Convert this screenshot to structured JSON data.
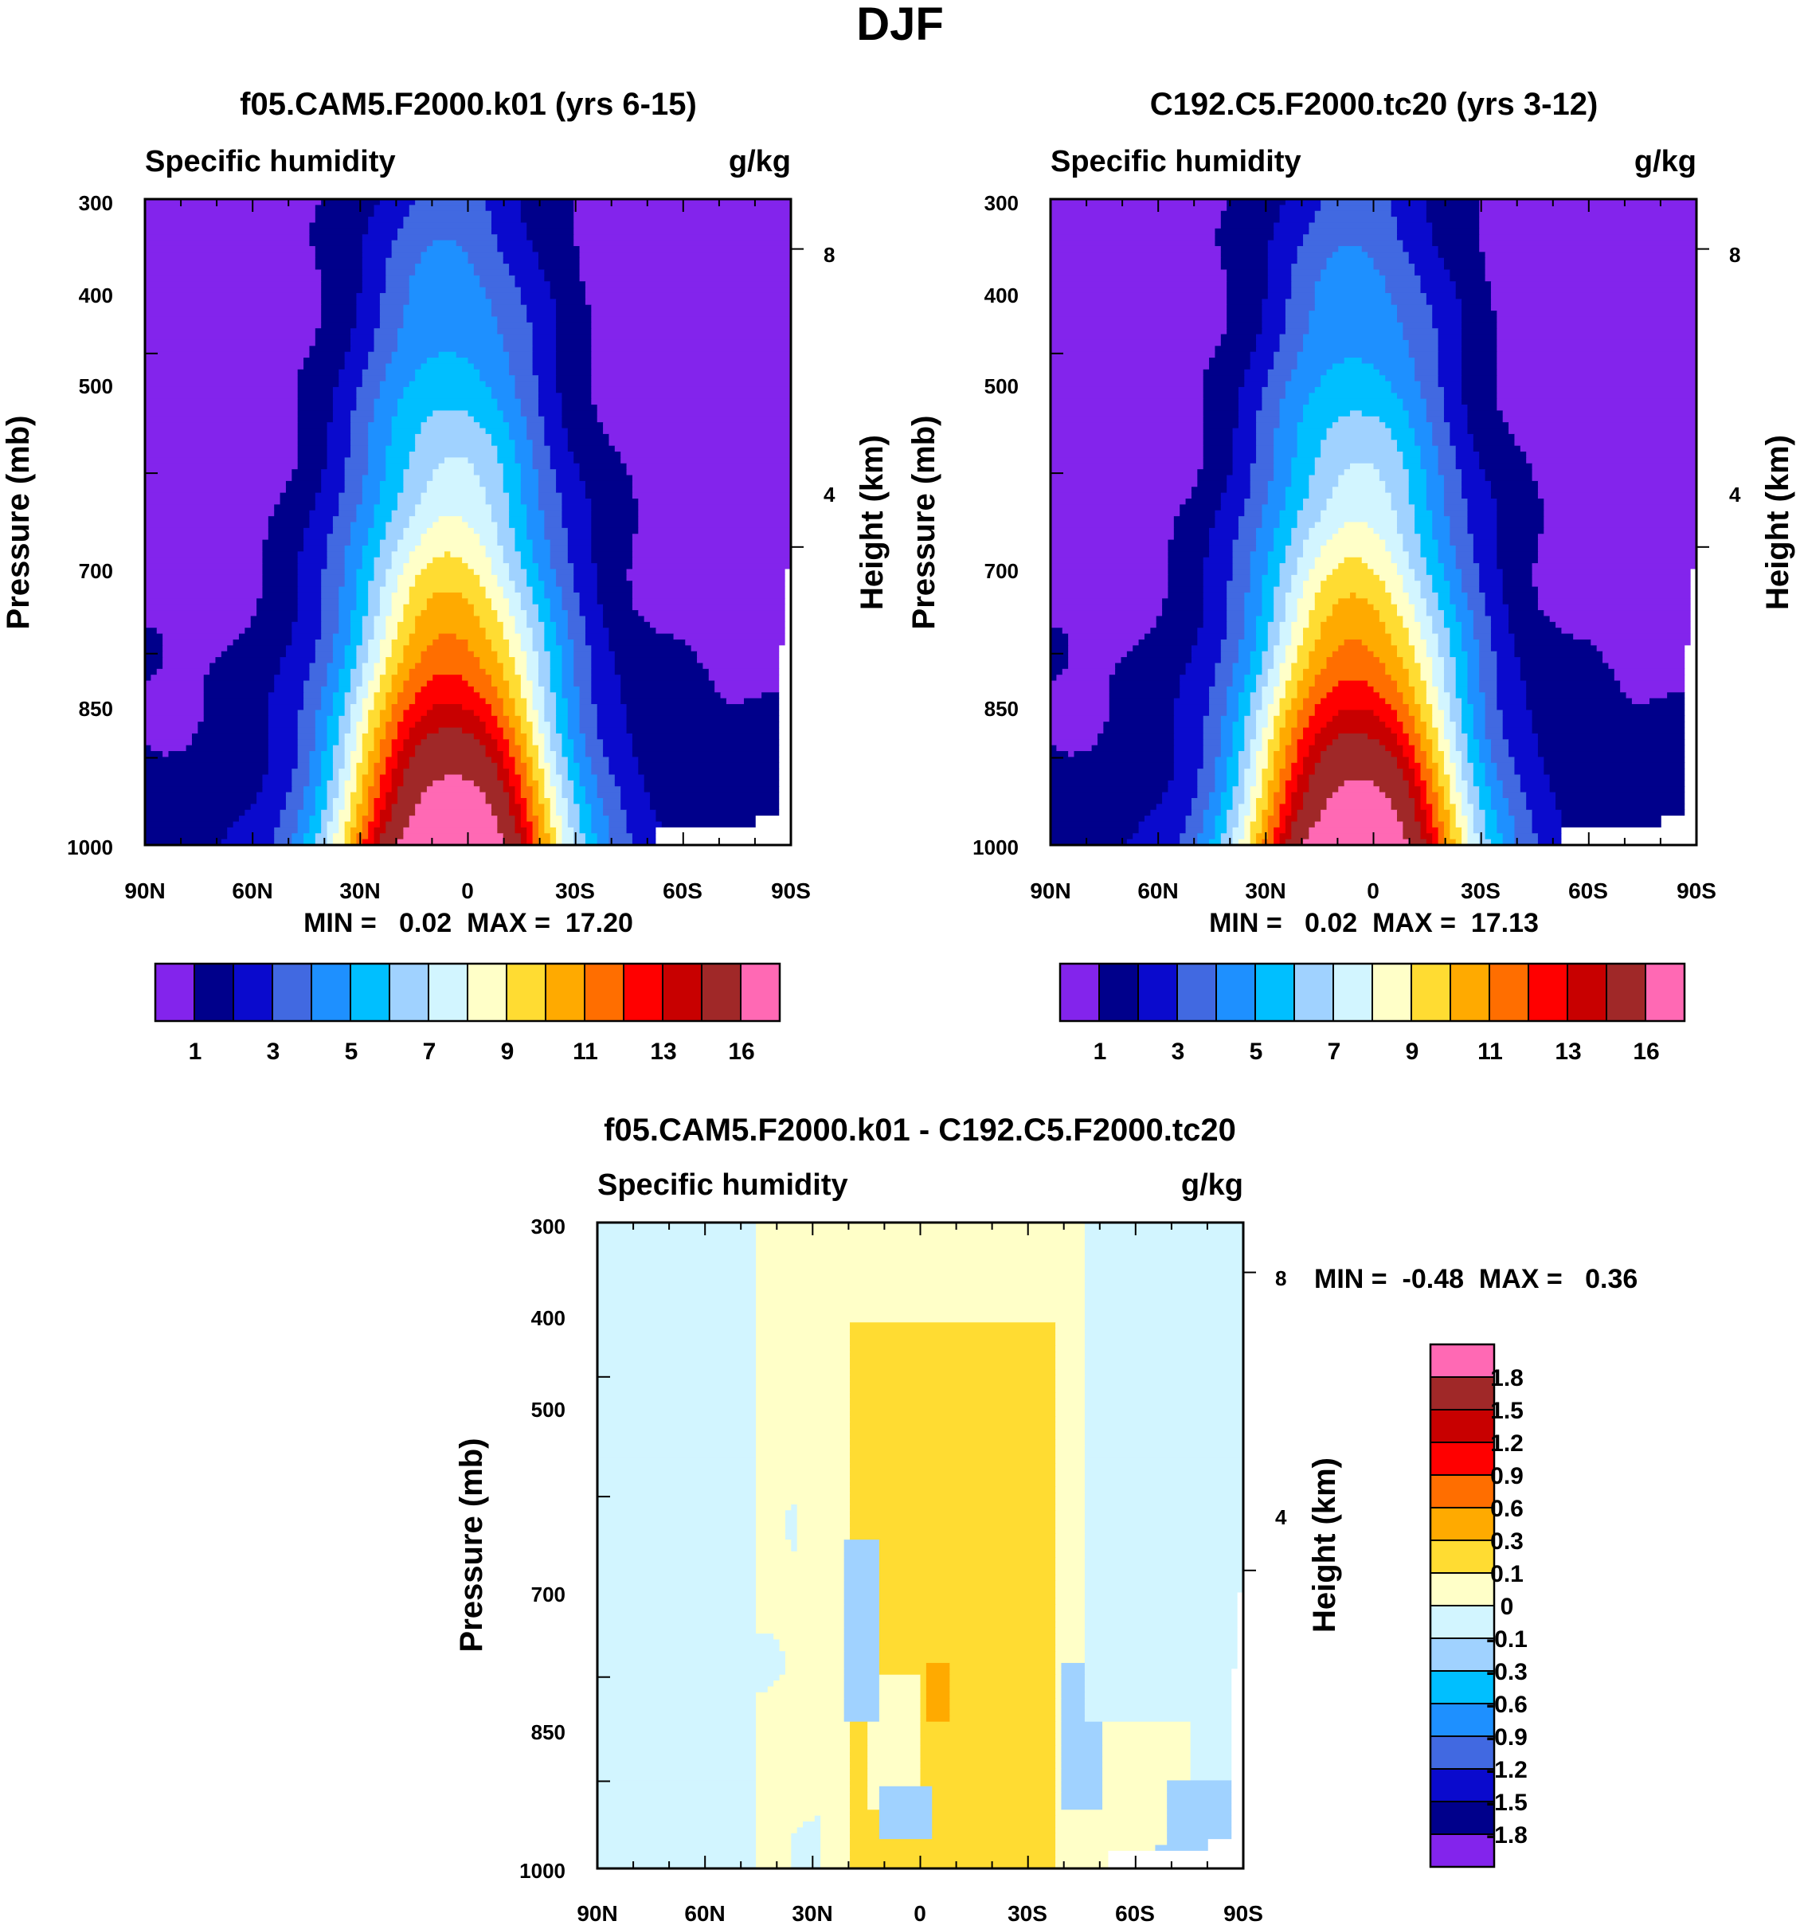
{
  "figure": {
    "title": "DJF"
  },
  "chart_data": [
    {
      "id": "model",
      "type": "heatmap",
      "title": "f05.CAM5.F2000.k01 (yrs 6-15)",
      "left_label": "Specific humidity",
      "right_label": "g/kg",
      "ylabel": "Pressure (mb)",
      "y2label": "Height (km)",
      "x_ticks": [
        "90N",
        "60N",
        "30N",
        "0",
        "30S",
        "60S",
        "90S"
      ],
      "y_ticks": [
        "300",
        "400",
        "500",
        "700",
        "850",
        "1000"
      ],
      "y2_ticks": [
        "8",
        "4"
      ],
      "ylim": [
        300,
        1000
      ],
      "stats": "MIN =   0.02  MAX =  17.20",
      "peak_lat": 5,
      "scale": 1.0,
      "colorbar_labels": [
        "1",
        "3",
        "5",
        "7",
        "9",
        "11",
        "13",
        "16"
      ]
    },
    {
      "id": "obs",
      "type": "heatmap",
      "title": "C192.C5.F2000.tc20 (yrs 3-12)",
      "left_label": "Specific humidity",
      "right_label": "g/kg",
      "ylabel": "Pressure (mb)",
      "y2label": "Height (km)",
      "x_ticks": [
        "90N",
        "60N",
        "30N",
        "0",
        "30S",
        "60S",
        "90S"
      ],
      "y_ticks": [
        "300",
        "400",
        "500",
        "700",
        "850",
        "1000"
      ],
      "y2_ticks": [
        "8",
        "4"
      ],
      "ylim": [
        300,
        1000
      ],
      "stats": "MIN =   0.02  MAX =  17.13",
      "peak_lat": 5,
      "scale": 0.985,
      "colorbar_labels": [
        "1",
        "3",
        "5",
        "7",
        "9",
        "11",
        "13",
        "16"
      ]
    },
    {
      "id": "diff",
      "type": "heatmap",
      "title": "f05.CAM5.F2000.k01 - C192.C5.F2000.tc20",
      "left_label": "Specific humidity",
      "right_label": "g/kg",
      "ylabel": "Pressure (mb)",
      "y2label": "Height (km)",
      "x_ticks": [
        "90N",
        "60N",
        "30N",
        "0",
        "30S",
        "60S",
        "90S"
      ],
      "y_ticks": [
        "300",
        "400",
        "500",
        "700",
        "850",
        "1000"
      ],
      "y2_ticks": [
        "8",
        "4"
      ],
      "ylim": [
        300,
        1000
      ],
      "stats": "MIN =  -0.48  MAX =   0.36",
      "colorbar_labels": [
        "1.8",
        "1.5",
        "1.2",
        "0.9",
        "0.6",
        "0.3",
        "0.1",
        "0",
        "-0.1",
        "-0.3",
        "-0.6",
        "-0.9",
        "-1.2",
        "-1.5",
        "-1.8"
      ]
    }
  ],
  "palettes": {
    "abs_colors": [
      "#8324ec",
      "#00008b",
      "#0a0acd",
      "#4169e1",
      "#1e90ff",
      "#00bfff",
      "#a0d2ff",
      "#d2f5ff",
      "#ffffc8",
      "#ffdc32",
      "#ffaa00",
      "#ff6e00",
      "#ff0000",
      "#c80000",
      "#a02828",
      "#ff69b4"
    ],
    "abs_levels": [
      1,
      2,
      3,
      4,
      5,
      6,
      7,
      8,
      9,
      10,
      11,
      12,
      13,
      14,
      16
    ],
    "diff_colors": [
      "#ff69b4",
      "#a02828",
      "#c80000",
      "#ff0000",
      "#ff6e00",
      "#ffaa00",
      "#ffdc32",
      "#ffffc8",
      "#d2f5ff",
      "#a0d2ff",
      "#00bfff",
      "#1e90ff",
      "#4169e1",
      "#0a0acd",
      "#00008b",
      "#8324ec"
    ],
    "diff_levels": [
      -1.8,
      -1.5,
      -1.2,
      -0.9,
      -0.6,
      -0.3,
      -0.1,
      0,
      0.1,
      0.3,
      0.6,
      0.9,
      1.2,
      1.5,
      1.8
    ]
  }
}
